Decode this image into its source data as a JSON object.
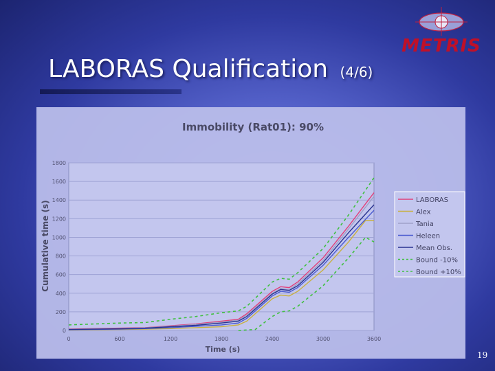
{
  "slide": {
    "title": "LABORAS Qualification",
    "title_suffix": "(4/6)",
    "logo_text": "METRIS",
    "page_number": "19"
  },
  "colors": {
    "LABORAS": "#e0407a",
    "Alex": "#c8b040",
    "Tania": "#a0a0c8",
    "Heleen": "#4a5ad0",
    "Mean Obs.": "#2a3490",
    "Bound -10%": "#40c040",
    "Bound +10%": "#40c040"
  },
  "chart_data": {
    "type": "line",
    "title": "Immobility (Rat01): 90%",
    "xlabel": "Time (s)",
    "ylabel": "Cumulative time (s)",
    "xlim": [
      0,
      3600
    ],
    "ylim": [
      0,
      1800
    ],
    "xticks": [
      0,
      600,
      1200,
      1800,
      2400,
      3000,
      3600
    ],
    "yticks": [
      0,
      200,
      400,
      600,
      800,
      1000,
      1200,
      1400,
      1600,
      1800
    ],
    "grid": true,
    "legend_position": "right",
    "series": [
      {
        "name": "LABORAS",
        "dash": false,
        "x": [
          0,
          600,
          900,
          1200,
          1500,
          1800,
          2000,
          2100,
          2400,
          2500,
          2600,
          2700,
          3000,
          3300,
          3600
        ],
        "y": [
          15,
          25,
          30,
          50,
          70,
          100,
          120,
          180,
          420,
          470,
          460,
          520,
          780,
          1120,
          1480
        ]
      },
      {
        "name": "Alex",
        "dash": false,
        "x": [
          0,
          600,
          900,
          1200,
          1500,
          1800,
          2000,
          2100,
          2400,
          2500,
          2600,
          2700,
          3000,
          3300,
          3500,
          3600
        ],
        "y": [
          5,
          10,
          15,
          20,
          30,
          40,
          60,
          100,
          340,
          380,
          370,
          420,
          650,
          950,
          1180,
          1180
        ]
      },
      {
        "name": "Tania",
        "dash": false,
        "x": [
          0,
          600,
          900,
          1200,
          1500,
          1800,
          2000,
          2100,
          2400,
          2500,
          2600,
          2700,
          3000,
          3300,
          3600
        ],
        "y": [
          12,
          20,
          28,
          45,
          65,
          90,
          110,
          165,
          400,
          450,
          440,
          500,
          750,
          1090,
          1440
        ]
      },
      {
        "name": "Heleen",
        "dash": false,
        "x": [
          0,
          600,
          900,
          1200,
          1500,
          1800,
          2000,
          2100,
          2400,
          2500,
          2600,
          2700,
          3000,
          3300,
          3600
        ],
        "y": [
          8,
          15,
          20,
          30,
          45,
          60,
          80,
          130,
          370,
          420,
          410,
          460,
          700,
          1000,
          1290
        ]
      },
      {
        "name": "Mean Obs.",
        "dash": false,
        "x": [
          0,
          600,
          900,
          1200,
          1500,
          1800,
          2000,
          2100,
          2400,
          2500,
          2600,
          2700,
          3000,
          3300,
          3600
        ],
        "y": [
          10,
          18,
          25,
          40,
          55,
          80,
          100,
          150,
          390,
          440,
          430,
          480,
          730,
          1050,
          1350
        ]
      },
      {
        "name": "Bound -10%",
        "dash": true,
        "x": [
          2000,
          2200,
          2400,
          2500,
          2600,
          2700,
          3000,
          3300,
          3500,
          3600
        ],
        "y": [
          0,
          10,
          150,
          200,
          210,
          260,
          480,
          780,
          1000,
          950
        ]
      },
      {
        "name": "Bound +10%",
        "dash": true,
        "x": [
          0,
          600,
          900,
          1200,
          1500,
          1800,
          2000,
          2100,
          2400,
          2500,
          2600,
          2700,
          3000,
          3300,
          3600
        ],
        "y": [
          60,
          80,
          85,
          120,
          150,
          190,
          210,
          260,
          520,
          560,
          550,
          620,
          880,
          1240,
          1640
        ]
      }
    ]
  }
}
